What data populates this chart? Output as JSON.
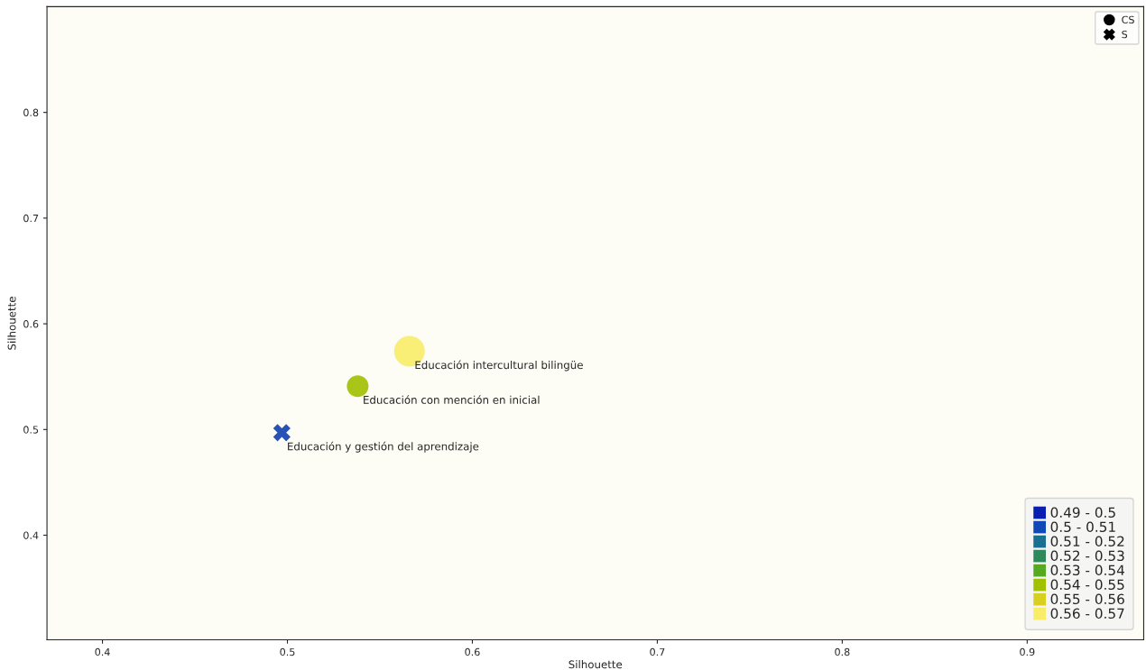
{
  "chart_data": {
    "type": "bubble",
    "xlabel": "Silhouette",
    "ylabel": "Silhouette",
    "xlim": [
      0.37,
      0.963
    ],
    "ylim": [
      0.301,
      0.9
    ],
    "xticks": [
      0.4,
      0.5,
      0.6,
      0.7,
      0.8,
      0.9
    ],
    "yticks": [
      0.4,
      0.5,
      0.6,
      0.7,
      0.8
    ],
    "series": [
      {
        "name": "CS",
        "marker": "circle",
        "x": [
          0.566,
          0.538
        ],
        "values": [
          0.574,
          0.541
        ],
        "sizes": [
          1,
          0.5
        ],
        "colors": [
          "#f8ec68",
          "#a0c000"
        ]
      },
      {
        "name": "S",
        "marker": "cross",
        "x": [
          0.497
        ],
        "values": [
          0.497
        ],
        "sizes": [
          0.22
        ],
        "colors": [
          "#1040b0"
        ]
      }
    ],
    "annotations": [
      {
        "text": "Educación intercultural bilingüe",
        "x": 0.566,
        "y": 0.574
      },
      {
        "text": "Educación con mención en inicial",
        "x": 0.538,
        "y": 0.541
      },
      {
        "text": "Educación y gestión del aprendizaje",
        "x": 0.497,
        "y": 0.497
      },
      "0.49 - 0.5",
      "0.5 - 0.51",
      "0.51 - 0.52",
      "0.52 - 0.53",
      "0.53 - 0.54",
      "0.54 - 0.55",
      "0.55 - 0.56",
      "0.56 - 0.57"
    ],
    "legend": "top right",
    "grid": false
  }
}
